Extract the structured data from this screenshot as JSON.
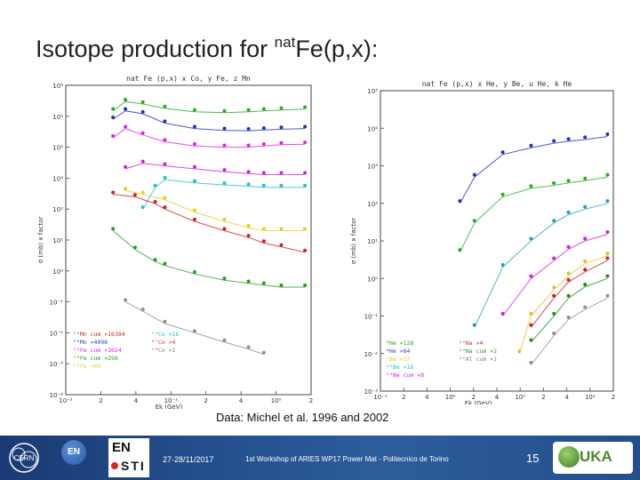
{
  "slide": {
    "title_main": "Isotope production for ",
    "title_sup": "nat",
    "title_tail": "Fe(p,x):",
    "caption": "Data: Michel et al. 1996 and 2002",
    "footer": {
      "date": "27-28/11/2017",
      "workshop": "1st Workshop of ARIES WP17 Power Mat - Politecnico de Torino",
      "page": "15"
    },
    "logos": {
      "cern_label": "CERN",
      "en_label": "EN",
      "ensti_top": "EN",
      "ensti_bottom": "STI",
      "fluka_label": "UKA"
    }
  },
  "chart_data": [
    {
      "type": "scatter",
      "title": "nat Fe (p,x) x Co, y Fe, z Mn",
      "xlabel": "Ek (GeV)",
      "ylabel": "σ (mb) x factor",
      "x_scale": "log",
      "y_scale": "log",
      "xlim": [
        0.01,
        3.0
      ],
      "ylim": [
        0.0001,
        1000000
      ],
      "x_tick_labels": [
        "10⁻²",
        "2",
        "4",
        "10⁻¹",
        "2",
        "4",
        "10⁰",
        "2"
      ],
      "y_tick_labels": [
        "10⁻⁴",
        "10⁻³",
        "10⁻²",
        "10⁻¹",
        "10⁰",
        "10¹",
        "10²",
        "10³",
        "10⁴",
        "10⁵",
        "10⁶"
      ],
      "legend": [
        {
          "label": "⁵²Mn cum ×16384",
          "color": "#c03030"
        },
        {
          "label": "⁵⁴Mn ×4096",
          "color": "#3040c8"
        },
        {
          "label": "⁵²Fe cum ×1024",
          "color": "#e020e0"
        },
        {
          "label": "⁵⁵Fe cum ×256",
          "color": "#20a020"
        },
        {
          "label": "⁵⁹Fe ×64",
          "color": "#e8d020"
        },
        {
          "label": "⁵⁶Co ×16",
          "color": "#20c0d0"
        },
        {
          "label": "⁵⁷Co ×4",
          "color": "#e03030"
        },
        {
          "label": "⁵⁸Co ×1",
          "color": "#808080"
        }
      ],
      "series": [
        {
          "name": "⁵⁸Co ×1",
          "color": "#2030c0",
          "x": [
            0.03,
            0.04,
            0.06,
            0.1,
            0.2,
            0.4,
            0.7,
            1.0,
            1.5,
            2.6
          ],
          "y": [
            80000,
            150000,
            120000,
            60000,
            40000,
            35000,
            34000,
            36000,
            38000,
            40000
          ]
        },
        {
          "name": "⁵⁷Co ×4",
          "color": "#20b020",
          "x": [
            0.03,
            0.04,
            0.06,
            0.1,
            0.2,
            0.4,
            0.7,
            1.0,
            1.5,
            2.6
          ],
          "y": [
            150000,
            300000,
            250000,
            180000,
            140000,
            130000,
            140000,
            150000,
            160000,
            170000
          ]
        },
        {
          "name": "⁵⁶Co ×16",
          "color": "#e020e0",
          "x": [
            0.03,
            0.04,
            0.06,
            0.1,
            0.2,
            0.4,
            0.7,
            1.0,
            1.5,
            2.6
          ],
          "y": [
            20000,
            40000,
            25000,
            15000,
            11000,
            10000,
            10000,
            11000,
            12000,
            12500
          ]
        },
        {
          "name": "⁵⁵Fe cum ×256",
          "color": "#d020d0",
          "x": [
            0.04,
            0.06,
            0.1,
            0.2,
            0.4,
            0.7,
            1.0,
            1.5,
            2.6
          ],
          "y": [
            2000,
            3000,
            2500,
            2000,
            1600,
            1400,
            1300,
            1300,
            1300
          ]
        },
        {
          "name": "⁵⁹Fe ×64",
          "color": "#20c0d0",
          "x": [
            0.06,
            0.08,
            0.1,
            0.2,
            0.4,
            0.7,
            1.0,
            1.5,
            2.6
          ],
          "y": [
            100,
            500,
            900,
            700,
            600,
            550,
            500,
            500,
            500
          ]
        },
        {
          "name": "⁵²Fe cum ×1024",
          "color": "#e8d020",
          "x": [
            0.04,
            0.06,
            0.1,
            0.2,
            0.4,
            0.7,
            1.0,
            1.5,
            2.6
          ],
          "y": [
            400,
            300,
            200,
            80,
            40,
            25,
            20,
            20,
            20
          ]
        },
        {
          "name": "⁵⁴Mn ×4096",
          "color": "#d02020",
          "x": [
            0.03,
            0.05,
            0.08,
            0.1,
            0.2,
            0.4,
            0.7,
            1.0,
            1.5,
            2.6
          ],
          "y": [
            300,
            250,
            150,
            100,
            40,
            20,
            12,
            8,
            6,
            4
          ]
        },
        {
          "name": "⁵²Mn cum ×16384",
          "color": "#20a020",
          "x": [
            0.03,
            0.05,
            0.08,
            0.1,
            0.2,
            0.4,
            0.7,
            1.0,
            1.5,
            2.6
          ],
          "y": [
            20,
            5,
            2,
            1.5,
            0.8,
            0.5,
            0.4,
            0.35,
            0.3,
            0.3
          ]
        },
        {
          "name": "grey",
          "color": "#909090",
          "x": [
            0.04,
            0.06,
            0.1,
            0.2,
            0.4,
            0.7,
            1.0
          ],
          "y": [
            0.1,
            0.05,
            0.02,
            0.01,
            0.005,
            0.003,
            0.002
          ]
        }
      ]
    },
    {
      "type": "scatter",
      "title": "nat Fe (p,x) x He, y Be, u He, k He",
      "xlabel": "Ek (GeV)",
      "ylabel": "σ (mb) x factor",
      "x_scale": "log",
      "y_scale": "log",
      "xlim": [
        0.01,
        3.0
      ],
      "ylim": [
        0.001,
        100000
      ],
      "x_tick_labels": [
        "10⁻¹",
        "2",
        "4",
        "10⁰",
        "2",
        "4",
        "10⁰",
        "2",
        "4",
        "10¹",
        "2"
      ],
      "y_tick_labels": [
        "10⁻³",
        "10⁻²",
        "10⁻¹",
        "10⁰",
        "10¹",
        "10²",
        "10³",
        "10⁴",
        "10⁵"
      ],
      "legend": [
        {
          "label": "³He ×128",
          "color": "#20a020"
        },
        {
          "label": "⁴He ×64",
          "color": "#3040c8"
        },
        {
          "label": "⁷Be ×32",
          "color": "#e8d020"
        },
        {
          "label": "¹⁰Be ×16",
          "color": "#20c0d0"
        },
        {
          "label": "¹⁰Be cum ×8",
          "color": "#e020e0"
        },
        {
          "label": "²²Na ×4",
          "color": "#c03030"
        },
        {
          "label": "²⁴Na cum ×2",
          "color": "#20a020"
        },
        {
          "label": "²⁶Al cum ×1",
          "color": "#808080"
        }
      ],
      "series": [
        {
          "name": "³He ×128",
          "color": "#2030c0",
          "x": [
            0.07,
            0.1,
            0.2,
            0.4,
            0.7,
            1.0,
            1.5,
            2.6
          ],
          "y": [
            100,
            500,
            2000,
            3000,
            4000,
            4500,
            5000,
            6000
          ]
        },
        {
          "name": "⁴He ×64",
          "color": "#20b020",
          "x": [
            0.07,
            0.1,
            0.2,
            0.4,
            0.7,
            1.0,
            1.5,
            2.6
          ],
          "y": [
            5,
            30,
            150,
            250,
            300,
            350,
            400,
            500
          ]
        },
        {
          "name": "⁷Be ×32",
          "color": "#20a0c0",
          "x": [
            0.1,
            0.2,
            0.4,
            0.7,
            1.0,
            1.5,
            2.6
          ],
          "y": [
            0.05,
            2,
            10,
            30,
            50,
            70,
            100
          ]
        },
        {
          "name": "¹⁰Be ×16",
          "color": "#d020d0",
          "x": [
            0.2,
            0.4,
            0.7,
            1.0,
            1.5,
            2.6
          ],
          "y": [
            0.1,
            1,
            3,
            6,
            10,
            15
          ]
        },
        {
          "name": "¹⁰Be cum ×8",
          "color": "#e8c020",
          "x": [
            0.3,
            0.4,
            0.7,
            1.0,
            1.5,
            2.6
          ],
          "y": [
            0.01,
            0.1,
            0.5,
            1.2,
            2.5,
            4
          ]
        },
        {
          "name": "²²Na ×4",
          "color": "#d02020",
          "x": [
            0.4,
            0.7,
            1.0,
            1.5,
            2.6
          ],
          "y": [
            0.05,
            0.3,
            0.8,
            1.5,
            3
          ]
        },
        {
          "name": "²⁴Na cum ×2",
          "color": "#209020",
          "x": [
            0.4,
            0.7,
            1.0,
            1.5,
            2.6
          ],
          "y": [
            0.02,
            0.1,
            0.3,
            0.6,
            1
          ]
        },
        {
          "name": "²⁶Al cum ×1",
          "color": "#909090",
          "x": [
            0.4,
            0.7,
            1.0,
            1.5,
            2.6
          ],
          "y": [
            0.005,
            0.03,
            0.08,
            0.15,
            0.3
          ]
        }
      ]
    }
  ]
}
